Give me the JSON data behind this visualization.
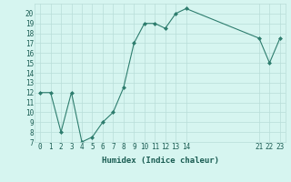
{
  "x": [
    0,
    1,
    2,
    3,
    4,
    5,
    6,
    7,
    8,
    9,
    10,
    11,
    12,
    13,
    14,
    21,
    22,
    23
  ],
  "y": [
    12,
    12,
    8,
    12,
    7,
    7.5,
    9,
    10,
    12.5,
    17,
    19,
    19,
    18.5,
    20,
    20.5,
    17.5,
    15,
    17.5
  ],
  "line_color": "#2e7d6e",
  "marker": "D",
  "marker_size": 2,
  "bg_color": "#d6f5f0",
  "grid_color": "#b8ddd8",
  "xlabel": "Humidex (Indice chaleur)",
  "xlim": [
    -0.5,
    23.5
  ],
  "ylim": [
    7,
    21
  ],
  "yticks": [
    7,
    8,
    9,
    10,
    11,
    12,
    13,
    14,
    15,
    16,
    17,
    18,
    19,
    20
  ],
  "xticks": [
    0,
    1,
    2,
    3,
    4,
    5,
    6,
    7,
    8,
    9,
    10,
    11,
    12,
    13,
    14,
    21,
    22,
    23
  ],
  "xlabel_fontsize": 6.5,
  "tick_fontsize": 5.5
}
